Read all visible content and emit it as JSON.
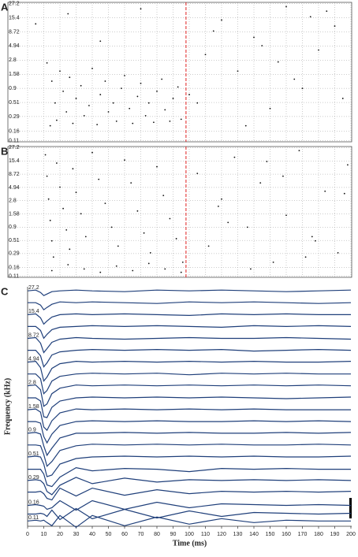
{
  "chart_data": [
    {
      "type": "scatter",
      "panel_label": "A",
      "color": "#111111",
      "log_y": true,
      "grid": true,
      "xlim": [
        -11,
        200
      ],
      "ylim": [
        0.105,
        28.5
      ],
      "yticks": [
        0.11,
        0.16,
        0.29,
        0.51,
        0.9,
        1.58,
        2.8,
        4.94,
        8.72,
        15.4,
        27.2
      ],
      "marker_x": 98,
      "marker_color": "#e02020",
      "x": [
        12,
        14,
        15,
        17,
        18,
        20,
        22,
        24,
        26,
        28,
        30,
        33,
        35,
        38,
        40,
        43,
        45,
        48,
        50,
        53,
        55,
        58,
        60,
        63,
        65,
        68,
        70,
        73,
        75,
        78,
        80,
        83,
        85,
        88,
        90,
        93,
        95,
        100,
        105,
        5,
        25,
        45,
        70,
        110,
        120,
        130,
        140,
        150,
        160,
        170,
        180,
        190,
        135,
        155,
        175,
        195,
        115,
        145,
        165,
        185
      ],
      "y": [
        2.5,
        0.2,
        1.2,
        0.5,
        0.25,
        1.8,
        0.8,
        0.35,
        1.4,
        0.22,
        0.6,
        1.0,
        0.3,
        0.45,
        2.0,
        0.21,
        0.7,
        1.2,
        0.35,
        0.5,
        0.24,
        0.9,
        1.5,
        0.4,
        0.22,
        0.65,
        1.1,
        0.3,
        0.5,
        0.23,
        0.8,
        1.3,
        0.38,
        0.24,
        0.6,
        0.95,
        0.26,
        0.7,
        0.5,
        12,
        18,
        6,
        22,
        3.5,
        14,
        1.8,
        7,
        0.4,
        24,
        0.9,
        4.2,
        11,
        0.2,
        2.6,
        16,
        0.6,
        9,
        5,
        1.3,
        20
      ]
    },
    {
      "type": "scatter",
      "panel_label": "B",
      "color": "#111111",
      "log_y": true,
      "grid": true,
      "xlim": [
        -11,
        200
      ],
      "ylim": [
        0.105,
        28.5
      ],
      "yticks": [
        0.11,
        0.16,
        0.29,
        0.51,
        0.9,
        1.58,
        2.8,
        4.94,
        8.72,
        15.4,
        27.2
      ],
      "marker_x": 98,
      "marker_color": "#e02020",
      "x": [
        11,
        12,
        13,
        14,
        15,
        16,
        18,
        20,
        22,
        24,
        26,
        28,
        30,
        33,
        36,
        40,
        44,
        48,
        52,
        56,
        60,
        64,
        68,
        72,
        76,
        80,
        84,
        88,
        92,
        96,
        15,
        25,
        35,
        45,
        55,
        65,
        75,
        85,
        95,
        105,
        112,
        120,
        128,
        136,
        144,
        152,
        160,
        168,
        176,
        184,
        192,
        198,
        118,
        138,
        158,
        178,
        124,
        148,
        172,
        196
      ],
      "y": [
        20,
        8,
        3,
        1.2,
        0.5,
        0.25,
        14,
        5,
        2,
        0.8,
        0.35,
        11,
        4,
        1.6,
        0.6,
        22,
        7,
        2.5,
        0.9,
        0.4,
        16,
        6,
        1.8,
        0.7,
        0.3,
        12,
        3.5,
        1.3,
        0.55,
        0.2,
        0.14,
        0.18,
        0.15,
        0.13,
        0.17,
        0.14,
        0.19,
        0.15,
        0.13,
        9,
        0.4,
        3,
        18,
        0.9,
        6,
        0.2,
        1.5,
        24,
        0.6,
        4.2,
        0.3,
        13,
        2.2,
        0.15,
        8,
        0.5,
        1.1,
        15,
        0.25,
        3.8
      ]
    },
    {
      "type": "traces",
      "panel_label": "C",
      "color": "#1f3f7a",
      "xlabel": "Time (ms)",
      "ylabel": "Frequency (kHz)",
      "log_y": true,
      "xlim": [
        0,
        200
      ],
      "ylim": [
        0.097,
        30
      ],
      "xticks": [
        0,
        10,
        20,
        30,
        40,
        50,
        60,
        70,
        80,
        90,
        100,
        110,
        120,
        130,
        140,
        150,
        160,
        170,
        180,
        190,
        200
      ],
      "yticks": [
        0.11,
        0.16,
        0.29,
        0.51,
        0.9,
        1.58,
        2.8,
        4.94,
        8.72,
        15.4,
        27.2
      ],
      "x": [
        0,
        5,
        8,
        10,
        12,
        15,
        20,
        30,
        40,
        60,
        80,
        100,
        120,
        140,
        160,
        180,
        200
      ],
      "traces": [
        {
          "freq": 27.2,
          "values": [
            0,
            0.1,
            -0.2,
            -0.6,
            -0.4,
            -0.1,
            0,
            0.1,
            0,
            -0.1,
            0.1,
            0,
            0.1,
            0,
            -0.1,
            0,
            0.1
          ]
        },
        {
          "freq": 20.5,
          "values": [
            0,
            0,
            -0.3,
            -0.9,
            -0.6,
            -0.2,
            0.1,
            0,
            0.1,
            0,
            -0.1,
            0.1,
            0,
            0.1,
            0,
            -0.1,
            0
          ]
        },
        {
          "freq": 15.4,
          "values": [
            0,
            0.1,
            -0.4,
            -1.2,
            -0.8,
            -0.3,
            0,
            0.1,
            0,
            0.1,
            0,
            -0.1,
            0.1,
            0,
            0.1,
            0,
            0
          ]
        },
        {
          "freq": 11.6,
          "values": [
            0,
            0,
            -0.5,
            -1.5,
            -1.0,
            -0.4,
            -0.1,
            0,
            0.1,
            0,
            0.1,
            0,
            -0.1,
            0.1,
            0,
            0.1,
            0
          ]
        },
        {
          "freq": 8.72,
          "values": [
            0,
            0.1,
            -0.6,
            -1.8,
            -1.3,
            -0.5,
            -0.1,
            0.1,
            0,
            -0.1,
            0,
            0.1,
            0,
            0,
            0.1,
            0,
            -0.1
          ]
        },
        {
          "freq": 6.56,
          "values": [
            0,
            0,
            -0.7,
            -2.1,
            -1.6,
            -0.6,
            -0.2,
            0,
            0.1,
            0,
            0.1,
            0,
            0.1,
            -0.1,
            0,
            0.1,
            0
          ]
        },
        {
          "freq": 4.94,
          "values": [
            0,
            0.1,
            -0.7,
            -2.4,
            -1.9,
            -0.8,
            -0.2,
            0.1,
            0,
            0.1,
            0,
            0.1,
            0,
            0.1,
            0,
            0,
            0.1
          ]
        },
        {
          "freq": 3.72,
          "values": [
            0,
            0,
            -0.6,
            -2.5,
            -2.1,
            -0.9,
            -0.3,
            0,
            0.1,
            0,
            0.1,
            -0.1,
            0.1,
            0,
            0.1,
            0,
            0
          ]
        },
        {
          "freq": 2.8,
          "values": [
            0,
            0.1,
            -0.5,
            -2.6,
            -2.3,
            -1.0,
            -0.3,
            0.1,
            0,
            0.1,
            0,
            0.1,
            0,
            0.1,
            0,
            0.1,
            0
          ]
        },
        {
          "freq": 2.1,
          "values": [
            0,
            0,
            -0.4,
            -2.4,
            -2.5,
            -1.2,
            -0.4,
            0,
            0.1,
            0,
            0.1,
            0,
            0.1,
            0,
            -0.1,
            0,
            0.1
          ]
        },
        {
          "freq": 1.58,
          "values": [
            0,
            0.1,
            -0.3,
            -2.2,
            -2.6,
            -1.4,
            -0.4,
            0.1,
            0,
            0.1,
            0,
            0.1,
            0,
            0.1,
            0,
            0,
            0
          ]
        },
        {
          "freq": 1.19,
          "values": [
            0,
            0,
            -0.2,
            -1.9,
            -2.7,
            -1.6,
            -0.5,
            0,
            0.1,
            0,
            0.1,
            0,
            0,
            0.1,
            0,
            0.1,
            0
          ]
        },
        {
          "freq": 0.9,
          "values": [
            0,
            0.1,
            -0.1,
            -1.6,
            -2.8,
            -1.9,
            -0.6,
            0,
            0,
            0.1,
            0,
            0.1,
            0,
            0,
            0.1,
            0,
            0.1
          ]
        },
        {
          "freq": 0.68,
          "values": [
            0,
            0,
            -0.1,
            -1.2,
            -2.7,
            -2.1,
            -0.7,
            -0.1,
            0.1,
            0,
            0.1,
            0,
            0.1,
            0,
            0,
            0.1,
            0
          ]
        },
        {
          "freq": 0.51,
          "values": [
            0,
            0.1,
            0,
            -0.9,
            -2.5,
            -2.3,
            -0.9,
            -0.2,
            0,
            0.1,
            0,
            0.1,
            0,
            0.1,
            0,
            0,
            0.1
          ]
        },
        {
          "freq": 0.38,
          "values": [
            0,
            0,
            0,
            -0.6,
            -2.0,
            -2.2,
            -1.0,
            0.2,
            -0.2,
            0.1,
            0,
            -0.3,
            0.1,
            0,
            0.1,
            0,
            0
          ]
        },
        {
          "freq": 0.29,
          "values": [
            0,
            0.1,
            0,
            -0.4,
            -1.4,
            -1.8,
            -0.6,
            0.4,
            -0.4,
            0.3,
            -0.2,
            0.1,
            0,
            0.1,
            0,
            0.1,
            0
          ]
        },
        {
          "freq": 0.22,
          "values": [
            0,
            0,
            0.1,
            -0.2,
            -0.8,
            -1.0,
            0.5,
            -0.5,
            0.5,
            -0.4,
            0.3,
            -0.2,
            0.1,
            0,
            0.1,
            0,
            0.1
          ]
        },
        {
          "freq": 0.16,
          "values": [
            0,
            0.1,
            0,
            -0.1,
            -0.5,
            -0.3,
            0.6,
            -0.6,
            0.6,
            -0.5,
            0.4,
            -0.3,
            0.2,
            0.1,
            0,
            0.1,
            0
          ]
        },
        {
          "freq": 0.13,
          "values": [
            0,
            0,
            0.1,
            0,
            -0.3,
            0.5,
            -0.7,
            0.7,
            -0.6,
            0.6,
            -0.5,
            0.4,
            -0.3,
            0.2,
            0.1,
            0,
            0.1
          ]
        },
        {
          "freq": 0.11,
          "values": [
            0,
            0.1,
            0,
            0.1,
            -0.2,
            -0.6,
            0.7,
            -0.8,
            0.7,
            -0.6,
            0.5,
            -0.4,
            0.3,
            -0.2,
            0.1,
            0,
            0
          ]
        }
      ]
    }
  ]
}
